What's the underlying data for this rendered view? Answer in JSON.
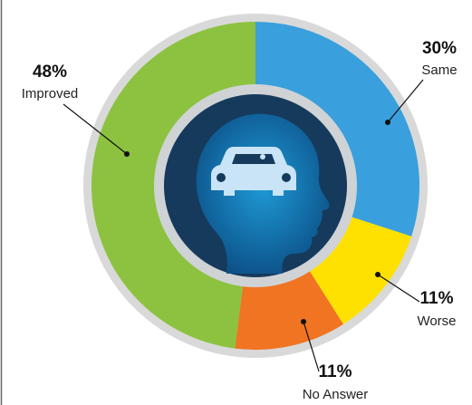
{
  "chart_data": {
    "type": "pie",
    "categories": [
      "Same",
      "Worse",
      "No Answer",
      "Improved"
    ],
    "values": [
      30,
      11,
      11,
      48
    ],
    "value_labels": [
      "30%",
      "11%",
      "11%",
      "48%"
    ],
    "colors": [
      "#3a9fdd",
      "#fee100",
      "#f07422",
      "#8cc23f"
    ]
  }
}
